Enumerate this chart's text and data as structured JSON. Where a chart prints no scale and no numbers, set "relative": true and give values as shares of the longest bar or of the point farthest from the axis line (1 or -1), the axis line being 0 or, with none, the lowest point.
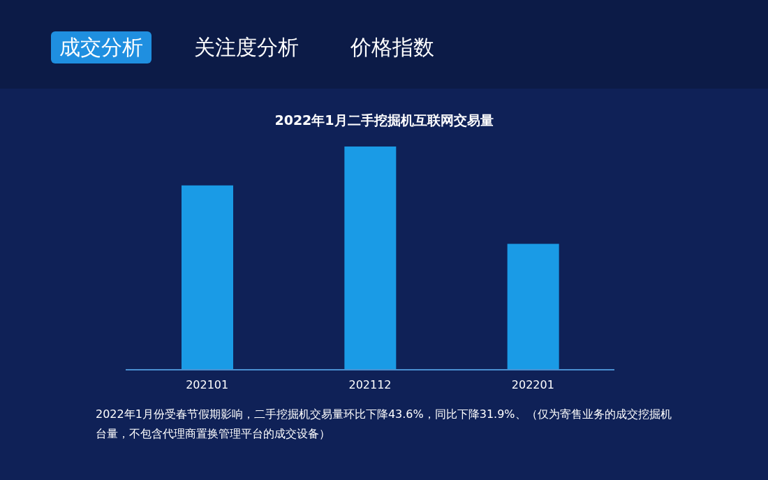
{
  "chart_data": {
    "type": "bar",
    "title": "2022年1月二手挖掘机互联网交易量",
    "categories": [
      "202101",
      "202112",
      "202201"
    ],
    "values": [
      0.826,
      1,
      0.564
    ],
    "color": "#1a9be6",
    "relative": true,
    "grid": false,
    "legend": false,
    "annotations": [
      "成交分析",
      "关注度分析",
      "价格指数",
      "2022年1月份受春节假期影响，二手挖掘机交易量环比下降43.6%，同比下降31.9%、（仅为寄售业务的成交挖掘机台量，不包含代理商置换管理平台的成交设备）"
    ]
  }
}
